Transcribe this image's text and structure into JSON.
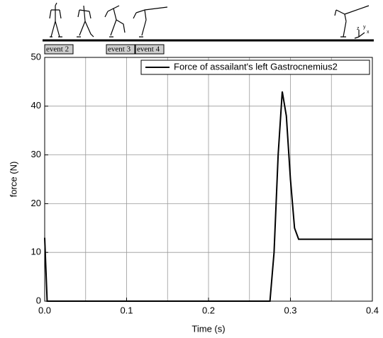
{
  "chart_data": {
    "type": "line",
    "xlabel": "Time (s)",
    "ylabel": "force (N)",
    "x": [
      0,
      0.003,
      0.275,
      0.28,
      0.285,
      0.29,
      0.295,
      0.3,
      0.305,
      0.31,
      0.4
    ],
    "series": [
      {
        "name": "Force of assailant's left Gastrocnemius2",
        "color": "#000000",
        "values": [
          13,
          0,
          0,
          10,
          30,
          43,
          38,
          25,
          15,
          12.7,
          12.7
        ]
      }
    ],
    "xlim": [
      0,
      0.4
    ],
    "ylim": [
      0,
      50
    ],
    "xticks": [
      {
        "value": 0,
        "label": "0.0"
      },
      0.1,
      0.2,
      0.3,
      0.4
    ],
    "x_minor_grid": [
      0.05,
      0.15,
      0.25,
      0.35
    ],
    "yticks": [
      0,
      10,
      20,
      30,
      40,
      50
    ],
    "grid": true,
    "legend": "upper right",
    "events": [
      "event 2",
      "event 3",
      "event 4"
    ],
    "axis_icon_labels": [
      "z",
      "y",
      "x"
    ]
  }
}
